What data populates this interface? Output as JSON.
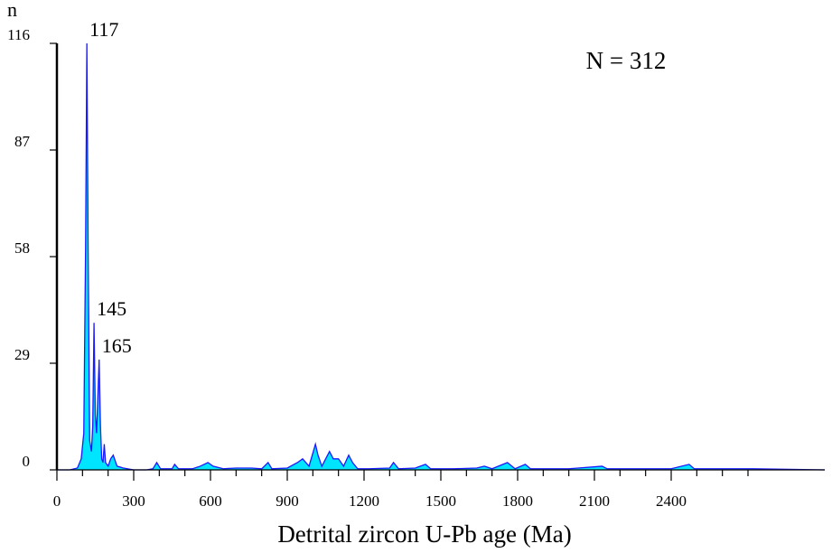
{
  "chart_data": {
    "type": "area",
    "y_label": "n",
    "x_label": "Detrital zircon U-Pb age (Ma)",
    "annotation": "N = 312",
    "peak_labels": [
      117,
      145,
      165
    ],
    "line_color": "#1a1aff",
    "fill_color": "#00e5ff",
    "xlim": [
      0,
      3000
    ],
    "ylim": [
      0,
      116
    ],
    "xticks": [
      0,
      300,
      600,
      900,
      1200,
      1500,
      1800,
      2100,
      2400
    ],
    "xminorticks": [
      100,
      200,
      400,
      500,
      700,
      800,
      1000,
      1100,
      1300,
      1400,
      1600,
      1700,
      1900,
      2000,
      2200,
      2300,
      2500,
      2600,
      2700
    ],
    "yticks": [
      0,
      29,
      58,
      87,
      116
    ],
    "x": [
      0,
      50,
      80,
      95,
      105,
      112,
      117,
      122,
      128,
      135,
      140,
      145,
      150,
      155,
      160,
      165,
      170,
      175,
      180,
      185,
      190,
      200,
      210,
      220,
      235,
      260,
      300,
      350,
      375,
      390,
      405,
      450,
      460,
      475,
      530,
      560,
      590,
      610,
      650,
      700,
      760,
      800,
      825,
      840,
      900,
      940,
      960,
      985,
      1010,
      1020,
      1035,
      1065,
      1080,
      1100,
      1120,
      1140,
      1155,
      1175,
      1220,
      1300,
      1315,
      1335,
      1400,
      1440,
      1460,
      1550,
      1640,
      1670,
      1700,
      1760,
      1790,
      1830,
      1850,
      2000,
      2130,
      2150,
      2400,
      2470,
      2490,
      2720,
      3000
    ],
    "values": [
      0,
      0,
      0.5,
      3,
      10,
      60,
      116,
      60,
      8,
      5,
      12,
      40,
      15,
      10,
      20,
      30,
      12,
      3,
      2,
      7,
      2,
      1,
      3,
      4,
      1,
      0.5,
      0,
      0,
      0.3,
      2,
      0.3,
      0.3,
      1.5,
      0.3,
      0.3,
      1,
      2,
      1,
      0.3,
      0.5,
      0.5,
      0.3,
      2,
      0.3,
      0.5,
      2,
      3,
      1,
      7,
      4,
      1,
      5,
      3,
      3,
      1,
      4,
      2,
      0.3,
      0.3,
      0.5,
      2,
      0.3,
      0.5,
      1.5,
      0.3,
      0.3,
      0.5,
      1,
      0.3,
      2,
      0.3,
      1.5,
      0.3,
      0.3,
      1,
      0.3,
      0.3,
      1.5,
      0.3,
      0.3,
      0
    ]
  }
}
